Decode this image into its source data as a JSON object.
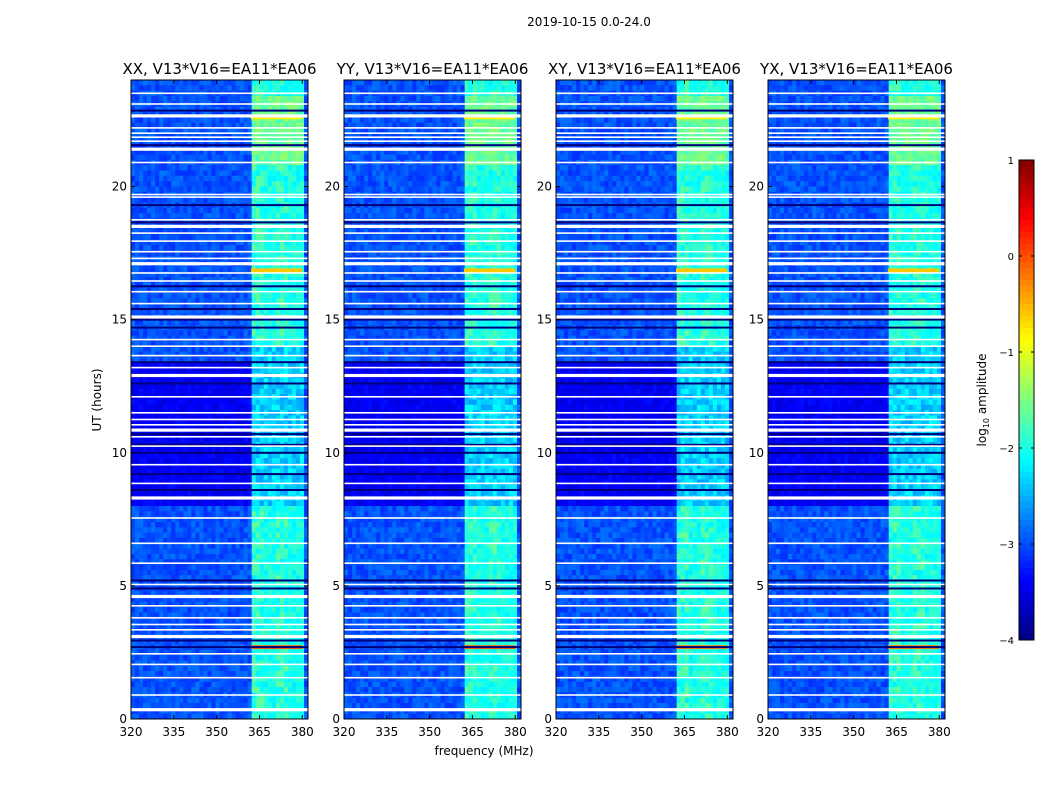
{
  "figure_title": "2019-10-15 0.0-24.0",
  "chart_data": {
    "type": "heatmap",
    "suptitle": "2019-10-15 0.0-24.0",
    "xlabel": "frequency (MHz)",
    "ylabel": "UT (hours)",
    "xlim": [
      320,
      382
    ],
    "ylim": [
      0,
      24
    ],
    "xticks": [
      320,
      335,
      350,
      365,
      380
    ],
    "yticks": [
      0,
      5,
      10,
      15,
      20
    ],
    "panels": [
      {
        "title": "XX, V13*V16=EA11*EA06",
        "polarization": "XX",
        "cross_pol": false
      },
      {
        "title": "YY, V13*V16=EA11*EA06",
        "polarization": "YY",
        "cross_pol": false
      },
      {
        "title": "XY, V13*V16=EA11*EA06",
        "polarization": "XY",
        "cross_pol": true
      },
      {
        "title": "YX, V13*V16=EA11*EA06",
        "polarization": "YX",
        "cross_pol": true
      }
    ],
    "colorbar": {
      "label": "log10 amplitude",
      "label_base": "log",
      "label_sub": "10",
      "label_rest": " amplitude",
      "min": -4,
      "max": 1,
      "ticks": [
        -4,
        -3,
        -2,
        -1,
        0,
        1
      ],
      "tick_labels": [
        "−4",
        "−3",
        "−2",
        "−1",
        "0",
        "1"
      ],
      "colormap": "jet"
    },
    "bright_band_mhz": [
      362,
      380
    ],
    "gap_rows_hours": [
      0.35,
      0.9,
      1.55,
      2.05,
      2.45,
      3.1,
      3.35,
      3.55,
      3.8,
      4.25,
      4.6,
      5.05,
      5.85,
      6.6,
      7.55,
      8.3,
      8.85,
      9.55,
      10.25,
      10.6,
      10.85,
      11.05,
      11.25,
      11.5,
      12.1,
      12.9,
      13.2,
      13.65,
      14.0,
      14.25,
      15.1,
      15.6,
      16.05,
      16.45,
      16.75,
      17.1,
      17.3,
      17.55,
      17.95,
      18.25,
      18.5,
      18.75,
      19.6,
      19.7,
      20.9,
      21.4,
      21.7,
      21.85,
      22.0,
      22.2,
      22.65,
      23.1,
      23.5
    ],
    "dark_rows_hours": [
      2.7,
      2.95,
      4.9,
      5.2,
      8.6,
      9.2,
      10.0,
      10.3,
      10.7,
      12.6,
      13.4,
      14.7,
      15.0,
      15.4,
      16.25,
      18.65,
      19.3,
      21.55,
      22.85
    ]
  }
}
